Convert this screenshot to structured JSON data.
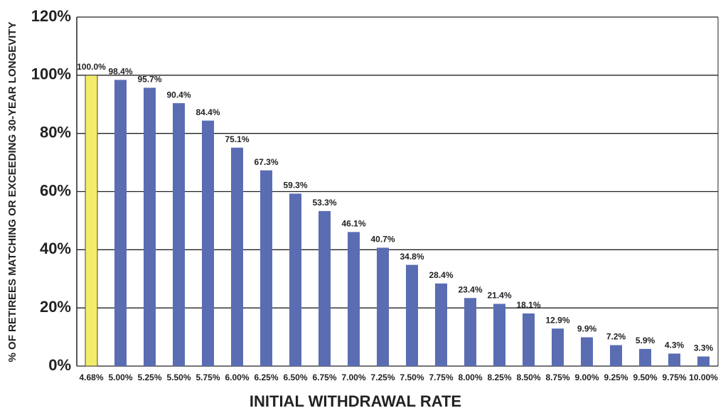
{
  "chart_data": {
    "type": "bar",
    "x_label": "INITIAL WITHDRAWAL RATE",
    "y_label": "% OF RETIREES MATCHING OR EXCEEDING 30-YEAR LONGEVITY",
    "categories": [
      "4.68%",
      "5.00%",
      "5.25%",
      "5.50%",
      "5.75%",
      "6.00%",
      "6.25%",
      "6.50%",
      "6.75%",
      "7.00%",
      "7.25%",
      "7.50%",
      "7.75%",
      "8.00%",
      "8.25%",
      "8.50%",
      "8.75%",
      "9.00%",
      "9.25%",
      "9.50%",
      "9.75%",
      "10.00%"
    ],
    "values": [
      100.0,
      98.4,
      95.7,
      90.4,
      84.4,
      75.1,
      67.3,
      59.3,
      53.3,
      46.1,
      40.7,
      34.8,
      28.4,
      23.4,
      21.4,
      18.1,
      12.9,
      9.9,
      7.2,
      5.9,
      4.3,
      3.3
    ],
    "value_labels": [
      "100.0%",
      "98.4%",
      "95.7%",
      "90.4%",
      "84.4%",
      "75.1%",
      "67.3%",
      "59.3%",
      "53.3%",
      "46.1%",
      "40.7%",
      "34.8%",
      "28.4%",
      "23.4%",
      "21.4%",
      "18.1%",
      "12.9%",
      "9.9%",
      "7.2%",
      "5.9%",
      "4.3%",
      "3.3%"
    ],
    "colors": [
      "#f3ec6a",
      "#5a6db3",
      "#5a6db3",
      "#5a6db3",
      "#5a6db3",
      "#5a6db3",
      "#5a6db3",
      "#5a6db3",
      "#5a6db3",
      "#5a6db3",
      "#5a6db3",
      "#5a6db3",
      "#5a6db3",
      "#5a6db3",
      "#5a6db3",
      "#5a6db3",
      "#5a6db3",
      "#5a6db3",
      "#5a6db3",
      "#5a6db3",
      "#5a6db3",
      "#5a6db3"
    ],
    "ylim": [
      0,
      120
    ],
    "yticks": [
      {
        "value": 0,
        "label": "0%"
      },
      {
        "value": 20,
        "label": "20%"
      },
      {
        "value": 40,
        "label": "40%"
      },
      {
        "value": 60,
        "label": "60%"
      },
      {
        "value": 80,
        "label": "80%"
      },
      {
        "value": 100,
        "label": "100%"
      },
      {
        "value": 120,
        "label": "120%"
      }
    ],
    "grid": true
  }
}
